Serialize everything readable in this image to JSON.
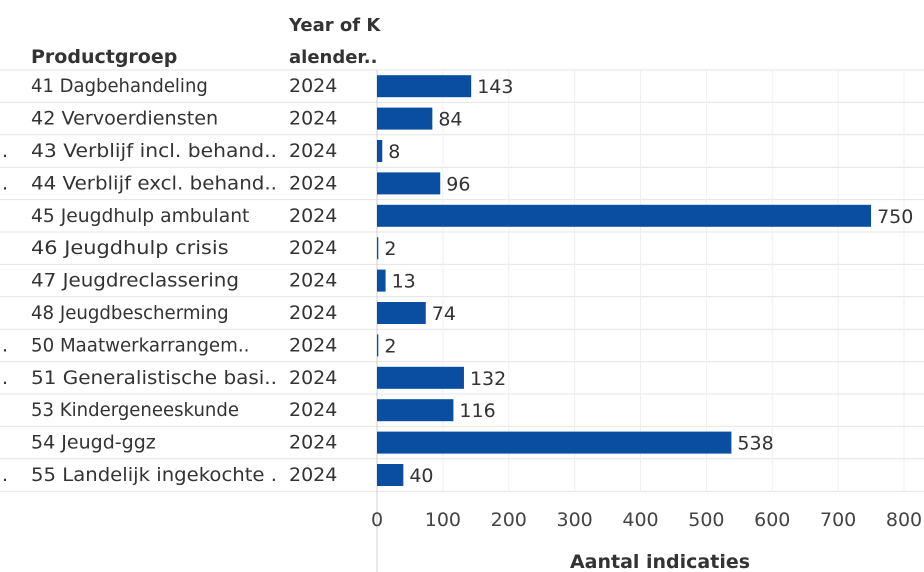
{
  "chart_data": {
    "type": "bar",
    "orientation": "horizontal",
    "row_header": "Productgroep",
    "year_header": [
      "Year of K",
      "alender.."
    ],
    "categories": [
      "41 Dagbehandeling",
      "42 Vervoerdiensten",
      "43 Verblijf incl. behand..",
      "44 Verblijf excl. behand..",
      "45 Jeugdhulp ambulant",
      "46 Jeugdhulp crisis",
      "47 Jeugdreclassering",
      "48 Jeugdbescherming",
      "50 Maatwerkarrangem..",
      "51 Generalistische basi..",
      "53 Kindergeneeskunde",
      "54 Jeugd-ggz",
      "55 Landelijk ingekochte ."
    ],
    "truncated_prefix_rows": [
      2,
      3,
      8,
      9,
      12
    ],
    "year": "2024",
    "values": [
      143,
      84,
      8,
      96,
      750,
      2,
      13,
      74,
      2,
      132,
      116,
      538,
      40
    ],
    "xlabel": "Aantal indicaties",
    "xlim": [
      0,
      800
    ],
    "xticks": [
      "0",
      "100",
      "200",
      "300",
      "400",
      "500",
      "600",
      "700",
      "800"
    ],
    "bar_color": "#0a4ea2",
    "grid": true,
    "legend": "none"
  }
}
